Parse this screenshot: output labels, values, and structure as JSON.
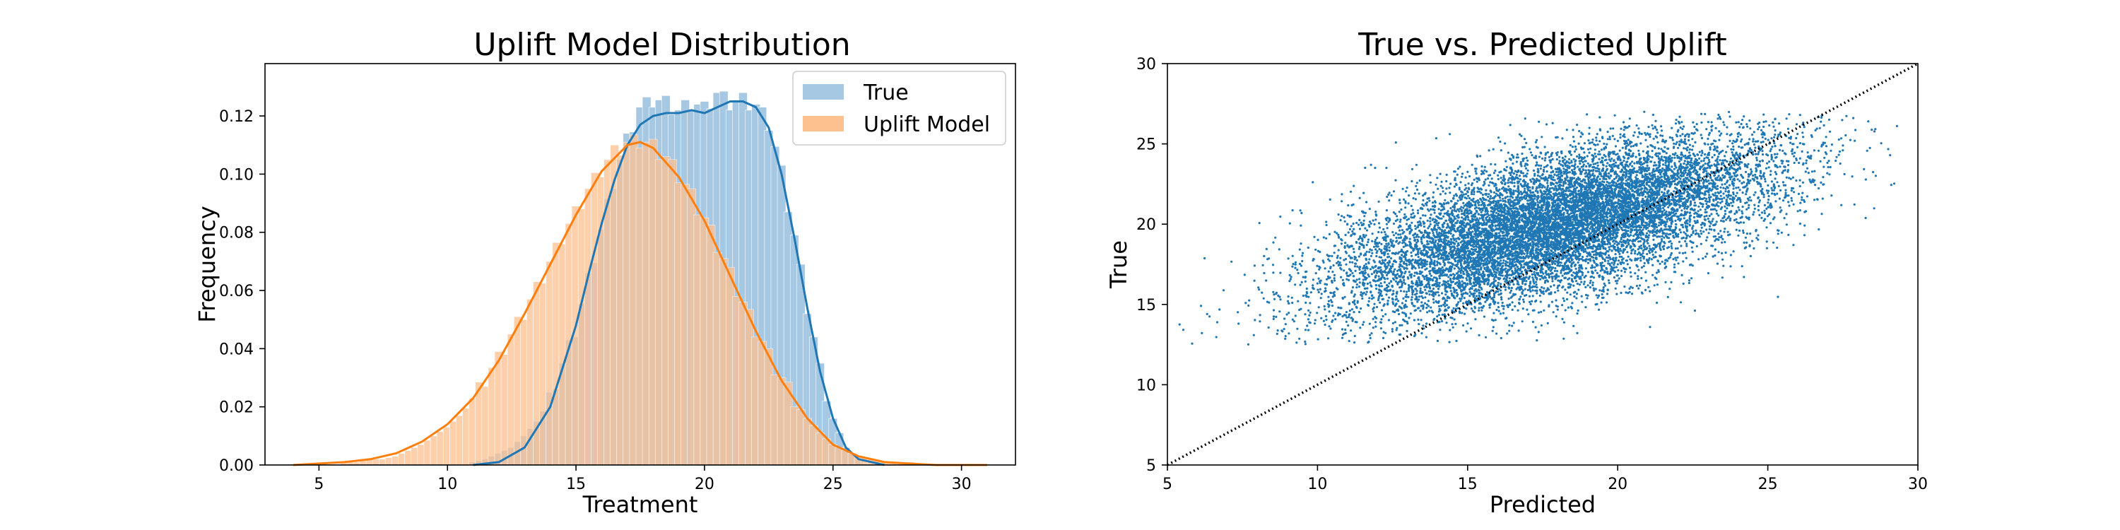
{
  "colors": {
    "true_series": "#1f77b4",
    "model_series": "#ff7f0e",
    "true_fill": "#a6c8e3",
    "model_fill": "#fdc08f",
    "overlap_fill": "#c9a98a",
    "diagonal": "#000000"
  },
  "chart_data": [
    {
      "type": "histogram",
      "title": "Uplift Model Distribution",
      "xlabel": "Treatment",
      "ylabel": "Frequency",
      "xlim": [
        2.9,
        32.1
      ],
      "ylim": [
        0,
        0.138
      ],
      "xticks": [
        "5",
        "10",
        "15",
        "20",
        "25",
        "30"
      ],
      "yticks": [
        "0.00",
        "0.02",
        "0.04",
        "0.06",
        "0.08",
        "0.10",
        "0.12"
      ],
      "legend": {
        "position": "top-right",
        "entries": [
          "True",
          "Uplift Model"
        ]
      },
      "grid": false,
      "series": [
        {
          "name": "True",
          "bin_width": 0.33,
          "bins": [
            [
              11.0,
              0.001
            ],
            [
              11.5,
              0.002
            ],
            [
              12.0,
              0.004
            ],
            [
              12.5,
              0.006
            ],
            [
              13.0,
              0.01
            ],
            [
              13.5,
              0.015
            ],
            [
              14.0,
              0.022
            ],
            [
              14.5,
              0.034
            ],
            [
              15.0,
              0.046
            ],
            [
              15.5,
              0.063
            ],
            [
              16.0,
              0.08
            ],
            [
              16.5,
              0.097
            ],
            [
              17.0,
              0.111
            ],
            [
              17.5,
              0.122
            ],
            [
              18.0,
              0.125
            ],
            [
              18.5,
              0.124
            ],
            [
              19.0,
              0.121
            ],
            [
              19.5,
              0.124
            ],
            [
              20.0,
              0.122
            ],
            [
              20.5,
              0.127
            ],
            [
              21.0,
              0.124
            ],
            [
              21.5,
              0.125
            ],
            [
              22.0,
              0.123
            ],
            [
              22.5,
              0.117
            ],
            [
              23.0,
              0.1
            ],
            [
              23.5,
              0.078
            ],
            [
              24.0,
              0.054
            ],
            [
              24.5,
              0.032
            ],
            [
              25.0,
              0.016
            ],
            [
              25.5,
              0.006
            ],
            [
              26.0,
              0.002
            ]
          ],
          "kde": [
            [
              11.0,
              0.0
            ],
            [
              12.0,
              0.001
            ],
            [
              13.0,
              0.006
            ],
            [
              14.0,
              0.02
            ],
            [
              15.0,
              0.048
            ],
            [
              15.5,
              0.066
            ],
            [
              16.0,
              0.083
            ],
            [
              16.5,
              0.098
            ],
            [
              17.0,
              0.11
            ],
            [
              17.5,
              0.117
            ],
            [
              18.0,
              0.12
            ],
            [
              18.5,
              0.121
            ],
            [
              19.0,
              0.121
            ],
            [
              19.5,
              0.122
            ],
            [
              20.0,
              0.121
            ],
            [
              20.5,
              0.123
            ],
            [
              21.0,
              0.125
            ],
            [
              21.5,
              0.125
            ],
            [
              22.0,
              0.123
            ],
            [
              22.5,
              0.116
            ],
            [
              23.0,
              0.1
            ],
            [
              23.5,
              0.078
            ],
            [
              24.0,
              0.054
            ],
            [
              24.5,
              0.032
            ],
            [
              25.0,
              0.016
            ],
            [
              25.5,
              0.006
            ],
            [
              26.0,
              0.002
            ],
            [
              27.0,
              0.0
            ]
          ]
        },
        {
          "name": "Uplift Model",
          "bin_width": 0.33,
          "bins": [
            [
              6.0,
              0.001
            ],
            [
              6.5,
              0.001
            ],
            [
              7.0,
              0.002
            ],
            [
              7.5,
              0.002
            ],
            [
              8.0,
              0.003
            ],
            [
              8.5,
              0.005
            ],
            [
              9.0,
              0.007
            ],
            [
              9.5,
              0.01
            ],
            [
              10.0,
              0.013
            ],
            [
              10.5,
              0.017
            ],
            [
              11.0,
              0.022
            ],
            [
              11.5,
              0.029
            ],
            [
              12.0,
              0.036
            ],
            [
              12.5,
              0.044
            ],
            [
              13.0,
              0.052
            ],
            [
              13.5,
              0.06
            ],
            [
              14.0,
              0.069
            ],
            [
              14.5,
              0.078
            ],
            [
              15.0,
              0.086
            ],
            [
              15.5,
              0.094
            ],
            [
              16.0,
              0.101
            ],
            [
              16.5,
              0.107
            ],
            [
              17.0,
              0.11
            ],
            [
              17.5,
              0.111
            ],
            [
              18.0,
              0.109
            ],
            [
              18.5,
              0.105
            ],
            [
              19.0,
              0.099
            ],
            [
              19.5,
              0.092
            ],
            [
              20.0,
              0.084
            ],
            [
              20.5,
              0.075
            ],
            [
              21.0,
              0.065
            ],
            [
              21.5,
              0.055
            ],
            [
              22.0,
              0.046
            ],
            [
              22.5,
              0.037
            ],
            [
              23.0,
              0.029
            ],
            [
              23.5,
              0.022
            ],
            [
              24.0,
              0.016
            ],
            [
              24.5,
              0.011
            ],
            [
              25.0,
              0.007
            ],
            [
              25.5,
              0.005
            ],
            [
              26.0,
              0.003
            ],
            [
              26.5,
              0.002
            ],
            [
              27.0,
              0.001
            ],
            [
              28.0,
              0.001
            ]
          ],
          "kde": [
            [
              4.0,
              0.0
            ],
            [
              6.0,
              0.001
            ],
            [
              7.0,
              0.002
            ],
            [
              8.0,
              0.004
            ],
            [
              9.0,
              0.008
            ],
            [
              10.0,
              0.014
            ],
            [
              11.0,
              0.023
            ],
            [
              12.0,
              0.036
            ],
            [
              13.0,
              0.052
            ],
            [
              14.0,
              0.069
            ],
            [
              15.0,
              0.086
            ],
            [
              16.0,
              0.101
            ],
            [
              17.0,
              0.11
            ],
            [
              17.5,
              0.111
            ],
            [
              18.0,
              0.109
            ],
            [
              19.0,
              0.099
            ],
            [
              20.0,
              0.084
            ],
            [
              21.0,
              0.065
            ],
            [
              22.0,
              0.046
            ],
            [
              23.0,
              0.029
            ],
            [
              24.0,
              0.016
            ],
            [
              25.0,
              0.007
            ],
            [
              26.0,
              0.003
            ],
            [
              27.0,
              0.001
            ],
            [
              29.0,
              0.0
            ],
            [
              31.0,
              0.0
            ]
          ]
        }
      ]
    },
    {
      "type": "scatter",
      "title": "True vs. Predicted Uplift",
      "xlabel": "Predicted",
      "ylabel": "True",
      "xlim": [
        5,
        30
      ],
      "ylim": [
        5,
        30
      ],
      "xticks": [
        "5",
        "10",
        "15",
        "20",
        "25",
        "30"
      ],
      "yticks": [
        "5",
        "10",
        "15",
        "20",
        "25",
        "30"
      ],
      "grid": false,
      "reference_line": {
        "style": "dotted",
        "from": [
          5,
          5
        ],
        "to": [
          30,
          30
        ]
      },
      "series": [
        {
          "name": "True",
          "distribution": {
            "n": 12000,
            "x_mean": 18.0,
            "x_sd": 3.6,
            "y_mean": 20.0,
            "y_sd": 2.7,
            "correlation": 0.62,
            "x_range": [
              5.2,
              29.5
            ],
            "y_range": [
              12.5,
              27.0
            ]
          }
        }
      ]
    }
  ]
}
